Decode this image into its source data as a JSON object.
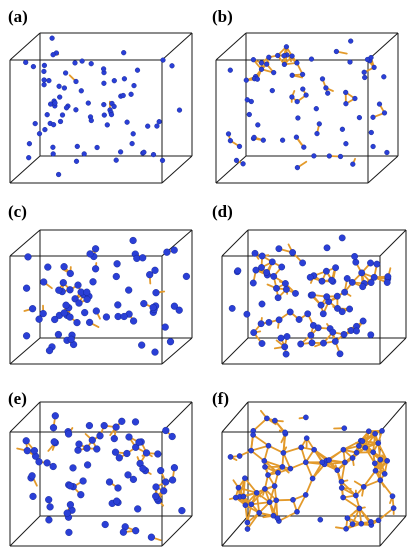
{
  "figure": {
    "panels": [
      {
        "label": "(a)",
        "atom_count": 80,
        "bond_count": 16,
        "atom_radius": 2.4,
        "seed": 11
      },
      {
        "label": "(b)",
        "atom_count": 75,
        "bond_count": 65,
        "atom_radius": 2.4,
        "seed": 23
      },
      {
        "label": "(c)",
        "atom_count": 75,
        "bond_count": 62,
        "atom_radius": 3.4,
        "seed": 37
      },
      {
        "label": "(d)",
        "atom_count": 85,
        "bond_count": 120,
        "atom_radius": 3.2,
        "seed": 41
      },
      {
        "label": "(e)",
        "atom_count": 80,
        "bond_count": 75,
        "atom_radius": 3.4,
        "seed": 53
      },
      {
        "label": "(f)",
        "atom_count": 85,
        "bond_count": 230,
        "atom_radius": 2.6,
        "seed": 67
      }
    ],
    "colors": {
      "atom": "#2a3fd6",
      "atom_dark": "#0e1f8a",
      "bond": "#e39a2b",
      "box_edge": "#1a1a1a"
    }
  }
}
